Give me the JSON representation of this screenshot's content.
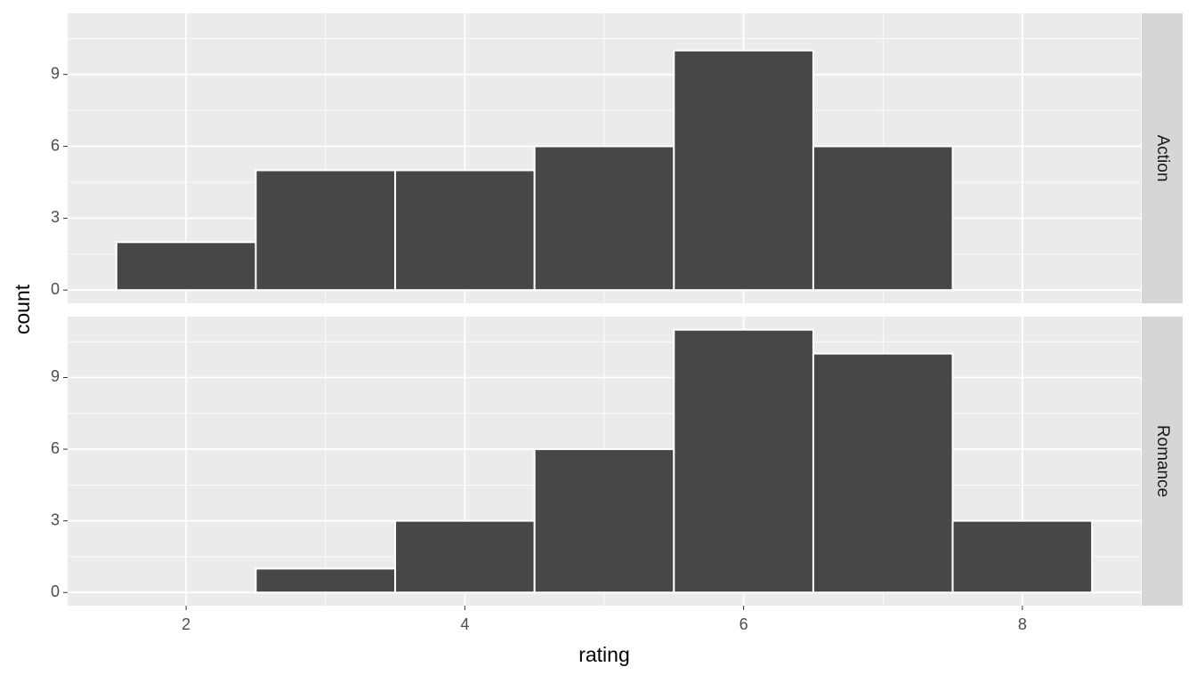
{
  "chart_data": {
    "type": "histogram",
    "facet": "rows",
    "xlabel": "rating",
    "ylabel": "count",
    "bins": [
      1.5,
      2.5,
      3.5,
      4.5,
      5.5,
      6.5,
      7.5,
      8.5
    ],
    "series": [
      {
        "name": "Action",
        "color": "#474747",
        "values": [
          2,
          5,
          5,
          6,
          10,
          6,
          0
        ]
      },
      {
        "name": "Romance",
        "color": "#474747",
        "values": [
          0,
          1,
          3,
          6,
          11,
          10,
          3
        ]
      }
    ],
    "xlim": [
      1.15,
      8.85
    ],
    "xticks": [
      2,
      4,
      6,
      8
    ],
    "xminor": [
      3,
      5,
      7
    ],
    "ylim": [
      -0.55,
      11.55
    ],
    "yticks": [
      0,
      3,
      6,
      9
    ],
    "yminor": [
      1.5,
      4.5,
      7.5,
      10.5
    ],
    "grid": true
  }
}
